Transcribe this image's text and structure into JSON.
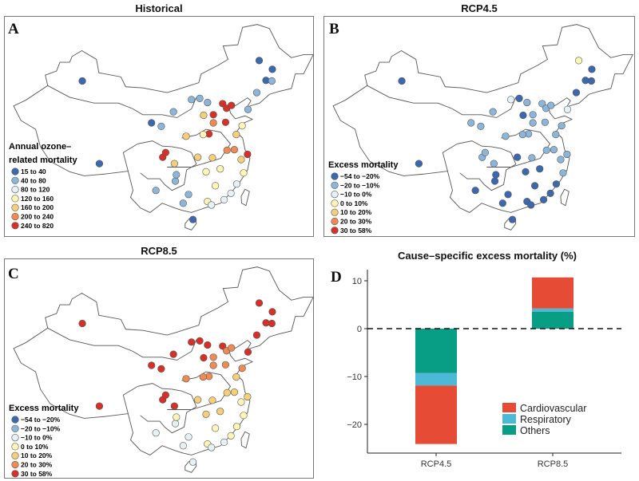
{
  "panels": {
    "A": {
      "letter": "A",
      "title": "Historical",
      "legend_title_1": "Annual ozone–",
      "legend_title_2": "related mortality"
    },
    "B": {
      "letter": "B",
      "title": "RCP4.5",
      "legend_title": "Excess mortality"
    },
    "C": {
      "letter": "C",
      "title": "RCP8.5",
      "legend_title": "Excess mortality"
    },
    "D": {
      "letter": "D",
      "title": "Cause–specific excess mortality (%)"
    }
  },
  "legend_colors": [
    "#3b68ae",
    "#8cb6d9",
    "#e6f1f6",
    "#fcf5b6",
    "#f5cf7a",
    "#ee8a52",
    "#d63128"
  ],
  "historical_bins": [
    "15 to 40",
    "40 to 80",
    "80 to 120",
    "120 to 160",
    "160 to 200",
    "200 to 240",
    "240 to 820"
  ],
  "excess_bins": [
    "−54 to −20%",
    "−20 to −10%",
    "−10 to 0%",
    "0 to 10%",
    "10 to 20%",
    "20 to 30%",
    "30 to 58%"
  ],
  "map_data": {
    "cities": [
      [
        116.4,
        39.9
      ],
      [
        117.2,
        39.1
      ],
      [
        114.5,
        38
      ],
      [
        112.5,
        37.9
      ],
      [
        111.7,
        40.8
      ],
      [
        123.4,
        41.8
      ],
      [
        125.3,
        43.9
      ],
      [
        126.6,
        45.8
      ],
      [
        121.5,
        31.2
      ],
      [
        118.8,
        32
      ],
      [
        120.2,
        30.3
      ],
      [
        117.3,
        31.9
      ],
      [
        119.3,
        26.1
      ],
      [
        115.9,
        28.7
      ],
      [
        117,
        36.7
      ],
      [
        120.4,
        36.1
      ],
      [
        113.6,
        34.7
      ],
      [
        114.3,
        30.6
      ],
      [
        113,
        28.2
      ],
      [
        113.3,
        23.1
      ],
      [
        114.1,
        22.5
      ],
      [
        108.3,
        22.8
      ],
      [
        110.3,
        20
      ],
      [
        106.5,
        29.6
      ],
      [
        104.1,
        30.7
      ],
      [
        106.7,
        26.6
      ],
      [
        102.7,
        25
      ],
      [
        91.1,
        29.6
      ],
      [
        108.9,
        34.3
      ],
      [
        103.8,
        36
      ],
      [
        101.8,
        36.6
      ],
      [
        106.3,
        38.5
      ],
      [
        87.6,
        43.8
      ],
      [
        121.6,
        38.9
      ],
      [
        118.1,
        24.5
      ],
      [
        120.7,
        28
      ],
      [
        119.2,
        34.6
      ],
      [
        110,
        40.6
      ],
      [
        113.3,
        40.1
      ],
      [
        118.2,
        39.6
      ],
      [
        114.5,
        36.6
      ],
      [
        112.4,
        34.6
      ],
      [
        111.3,
        30.7
      ],
      [
        104.7,
        31.5
      ],
      [
        106.9,
        27.7
      ],
      [
        109.4,
        24.3
      ],
      [
        116.7,
        23.4
      ],
      [
        114.9,
        25.8
      ],
      [
        123.9,
        47.3
      ],
      [
        126.5,
        43.8
      ]
    ],
    "historical_category": [
      6,
      6,
      6,
      4,
      1,
      1,
      0,
      0,
      6,
      5,
      4,
      5,
      2,
      3,
      6,
      3,
      6,
      4,
      3,
      3,
      2,
      1,
      0,
      4,
      6,
      1,
      1,
      0,
      4,
      1,
      0,
      1,
      0,
      1,
      2,
      3,
      4,
      1,
      1,
      6,
      5,
      3,
      4,
      6,
      1,
      1,
      2,
      3,
      0,
      1
    ],
    "rcp45_category": [
      1,
      1,
      1,
      0,
      0,
      0,
      0,
      0,
      1,
      1,
      1,
      1,
      0,
      0,
      1,
      1,
      1,
      1,
      0,
      0,
      0,
      0,
      0,
      1,
      1,
      0,
      0,
      0,
      1,
      1,
      1,
      1,
      0,
      2,
      0,
      1,
      1,
      2,
      1,
      1,
      1,
      1,
      0,
      1,
      0,
      0,
      0,
      0,
      3,
      0
    ],
    "rcp85_category": [
      6,
      5,
      5,
      6,
      6,
      6,
      6,
      6,
      4,
      4,
      3,
      4,
      3,
      4,
      5,
      5,
      5,
      4,
      4,
      3,
      2,
      2,
      2,
      6,
      6,
      2,
      2,
      6,
      5,
      6,
      6,
      6,
      6,
      6,
      3,
      3,
      4,
      6,
      6,
      5,
      5,
      5,
      4,
      6,
      3,
      2,
      2,
      3,
      6,
      6
    ]
  },
  "chart_data": {
    "type": "bar",
    "stacked": true,
    "title": "Cause–specific excess mortality (%)",
    "categories": [
      "RCP4.5",
      "RCP8.5"
    ],
    "series": [
      {
        "name": "Others",
        "values": [
          -9.3,
          3.5
        ],
        "color": "#079e85"
      },
      {
        "name": "Respiratory",
        "values": [
          -2.6,
          0.7
        ],
        "color": "#4cbad6"
      },
      {
        "name": "Cardiovascular",
        "values": [
          -12.2,
          6.5
        ],
        "color": "#e64b35"
      }
    ],
    "legend_order": [
      "Cardiovascular",
      "Respiratory",
      "Others"
    ],
    "ylim": [
      -26,
      12.5
    ],
    "yticks": [
      10,
      0,
      -10,
      -20
    ],
    "ytick_labels": [
      "10",
      "0",
      "−10",
      "−20"
    ],
    "reference_line": 0,
    "legend_position": "bottom-right"
  }
}
